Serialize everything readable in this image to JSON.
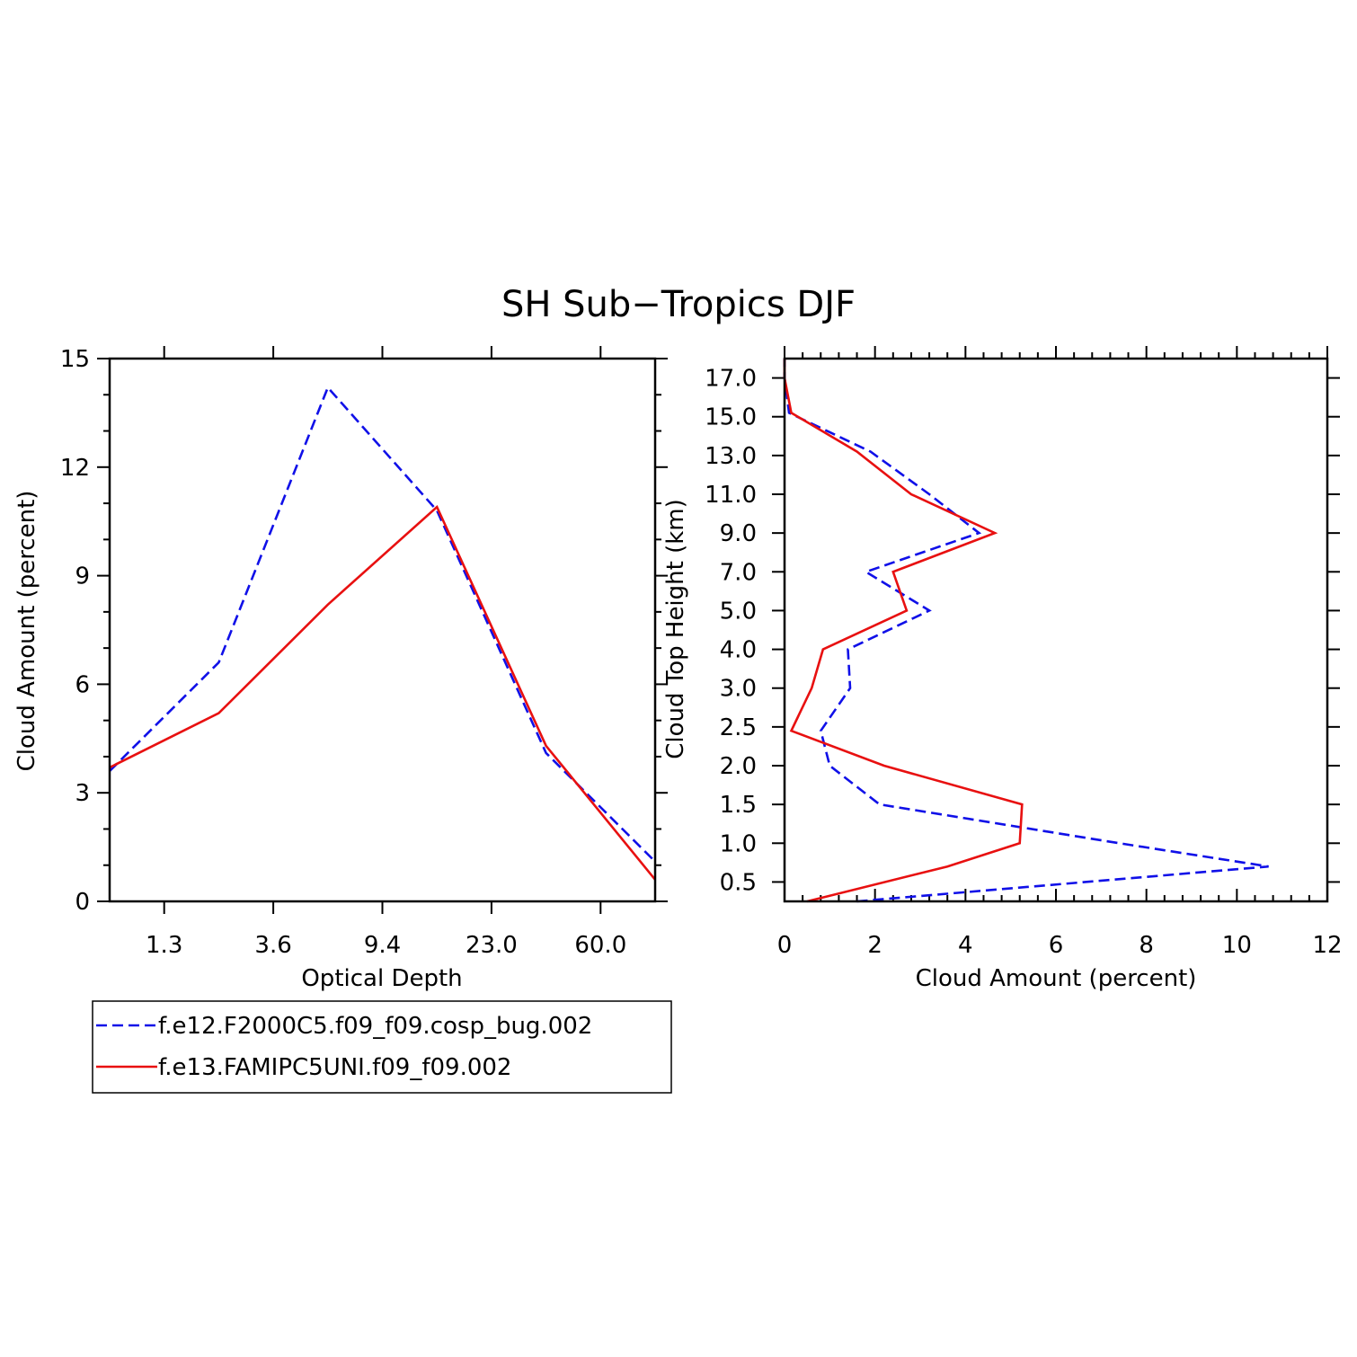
{
  "figure": {
    "title": "SH Sub−Tropics DJF"
  },
  "legend": {
    "entries": [
      {
        "label": "f.e12.F2000C5.f09_f09.cosp_bug.002",
        "color": "#1010e8",
        "dash": "dashed"
      },
      {
        "label": "f.e13.FAMIPC5UNI.f09_f09.002",
        "color": "#e81010",
        "dash": "solid"
      }
    ]
  },
  "chart_data": [
    {
      "type": "line",
      "title": "",
      "xlabel": "Optical Depth",
      "ylabel": "Cloud Amount (percent)",
      "xticklabels": [
        "1.3",
        "3.6",
        "9.4",
        "23.0",
        "60.0"
      ],
      "xtick_positions": [
        1,
        3,
        5,
        7,
        9
      ],
      "xlim": [
        0,
        10
      ],
      "ylim": [
        0,
        15
      ],
      "yticks": [
        0,
        3,
        6,
        9,
        12,
        15
      ],
      "yticklabels": [
        "0",
        "3",
        "6",
        "9",
        "12",
        "15"
      ],
      "x": [
        0,
        2,
        4,
        6,
        8,
        10
      ],
      "series": [
        {
          "name": "f.e12.F2000C5.f09_f09.cosp_bug.002",
          "values": [
            3.6,
            6.6,
            14.2,
            10.8,
            4.1,
            1.1
          ]
        },
        {
          "name": "f.e13.FAMIPC5UNI.f09_f09.002",
          "values": [
            3.7,
            5.2,
            8.2,
            10.9,
            4.3,
            0.6
          ]
        }
      ]
    },
    {
      "type": "line",
      "title": "",
      "xlabel": "Cloud Amount (percent)",
      "ylabel": "Cloud Top Height (km)",
      "xlim": [
        0,
        12
      ],
      "xticks": [
        0,
        2,
        4,
        6,
        8,
        10,
        12
      ],
      "xticklabels": [
        "0",
        "2",
        "4",
        "6",
        "8",
        "10",
        "12"
      ],
      "ylim": [
        0,
        14
      ],
      "yticks": [
        0.5,
        1.5,
        2.5,
        3.5,
        4.5,
        5.5,
        6.5,
        7.5,
        8.5,
        9.5,
        10.5,
        11.5,
        12.5,
        13.5
      ],
      "yticklabels": [
        "0.5",
        "1.0",
        "1.5",
        "2.0",
        "2.5",
        "3.0",
        "4.0",
        "5.0",
        "7.0",
        "9.0",
        "11.0",
        "13.0",
        "15.0",
        "17.0"
      ],
      "levels": [
        0,
        0.9,
        1.5,
        2.5,
        3.5,
        4.4,
        5.5,
        6.5,
        7.5,
        8.5,
        9.5,
        10.5,
        11.6,
        12.6,
        13.5,
        14
      ],
      "series": [
        {
          "name": "f.e12.F2000C5.f09_f09.cosp_bug.002",
          "values": [
            1.6,
            10.7,
            7.4,
            2.1,
            1.0,
            0.8,
            1.45,
            1.4,
            3.2,
            1.8,
            4.3,
            3.2,
            1.9,
            0.1,
            0.0,
            0.0
          ]
        },
        {
          "name": "f.e13.FAMIPC5UNI.f09_f09.002",
          "values": [
            0.5,
            3.6,
            5.2,
            5.25,
            2.2,
            0.15,
            0.6,
            0.85,
            2.7,
            2.4,
            4.65,
            2.8,
            1.6,
            0.15,
            0.0,
            0.0
          ]
        }
      ]
    }
  ]
}
